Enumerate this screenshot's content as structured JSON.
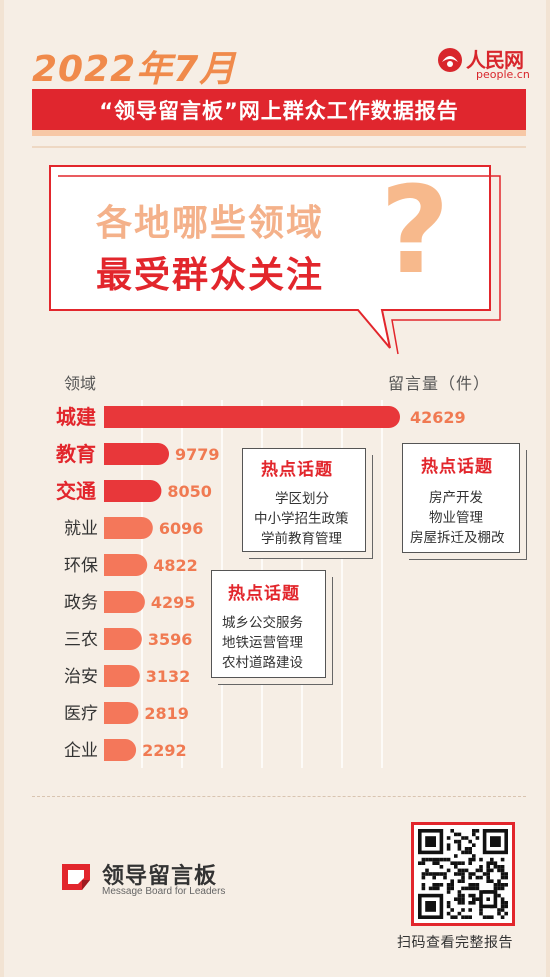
{
  "header": {
    "year_month": "2022年7月",
    "subtitle": "“领导留言板”网上群众工作数据报告"
  },
  "logo": {
    "cn": "人民网",
    "en": "people.cn"
  },
  "bubble": {
    "line1": "各地哪些领域",
    "line2": "最受群众关注",
    "qmark": "?"
  },
  "chart_data": {
    "type": "bar",
    "orientation": "horizontal",
    "xlabel": "领域",
    "ylabel": "留言量（件）",
    "categories": [
      "城建",
      "教育",
      "交通",
      "就业",
      "环保",
      "政务",
      "三农",
      "治安",
      "医疗",
      "企业"
    ],
    "values": [
      42629,
      9779,
      8050,
      6096,
      4822,
      4295,
      3596,
      3132,
      2819,
      2292
    ],
    "highlight_count": 3,
    "colors": {
      "highlight_bar": "#e8373a",
      "normal_bar": "#f4775a",
      "highlight_label": "#e2262c",
      "normal_label": "#333333",
      "value_label": "#f07a52"
    }
  },
  "callouts": {
    "education": {
      "title": "热点话题",
      "items": [
        "学区划分",
        "中小学招生政策",
        "学前教育管理"
      ]
    },
    "urban": {
      "title": "热点话题",
      "items": [
        "房产开发",
        "物业管理",
        "房屋拆迁及棚改"
      ]
    },
    "transport": {
      "title": "热点话题",
      "items": [
        "城乡公交服务",
        "地铁运营管理",
        "农村道路建设"
      ]
    }
  },
  "footer": {
    "name": "领导留言板",
    "name_en": "Message Board for Leaders",
    "qr_caption": "扫码查看完整报告"
  },
  "colors": {
    "accent_red": "#e0262e",
    "accent_orange": "#f08a4b",
    "background": "#f6eee5"
  }
}
